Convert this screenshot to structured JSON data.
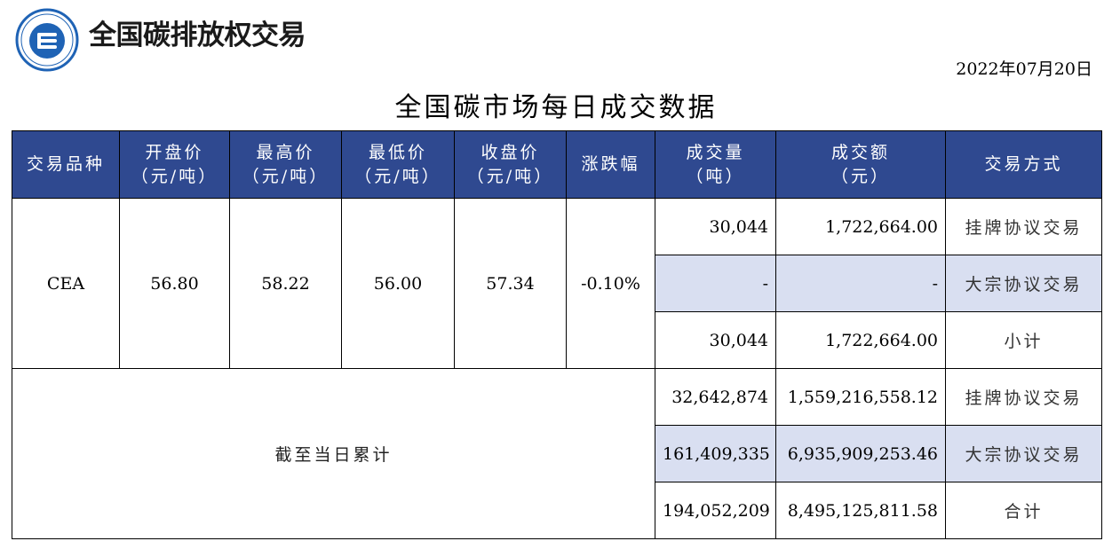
{
  "header": {
    "brand_title": "全国碳排放权交易",
    "date": "2022年07月20日",
    "page_title": "全国碳市场每日成交数据"
  },
  "table": {
    "columns": [
      {
        "l1": "交易品种",
        "l2": ""
      },
      {
        "l1": "开盘价",
        "l2": "（元/吨）"
      },
      {
        "l1": "最高价",
        "l2": "（元/吨）"
      },
      {
        "l1": "最低价",
        "l2": "（元/吨）"
      },
      {
        "l1": "收盘价",
        "l2": "（元/吨）"
      },
      {
        "l1": "涨跌幅",
        "l2": ""
      },
      {
        "l1": "成交量",
        "l2": "（吨）"
      },
      {
        "l1": "成交额",
        "l2": "（元）"
      },
      {
        "l1": "交易方式",
        "l2": ""
      }
    ],
    "daily": {
      "product": "CEA",
      "open": "56.80",
      "high": "58.22",
      "low": "56.00",
      "close": "57.34",
      "change": "-0.10%",
      "rows": [
        {
          "volume": "30,044",
          "amount": "1,722,664.00",
          "method": "挂牌协议交易"
        },
        {
          "volume": "-",
          "amount": "-",
          "method": "大宗协议交易"
        },
        {
          "volume": "30,044",
          "amount": "1,722,664.00",
          "method": "小计"
        }
      ]
    },
    "cumulative": {
      "label": "截至当日累计",
      "rows": [
        {
          "volume": "32,642,874",
          "amount": "1,559,216,558.12",
          "method": "挂牌协议交易"
        },
        {
          "volume": "161,409,335",
          "amount": "6,935,909,253.46",
          "method": "大宗协议交易"
        },
        {
          "volume": "194,052,209",
          "amount": "8,495,125,811.58",
          "method": "合计"
        }
      ]
    }
  },
  "colors": {
    "header_bg": "#2f4990",
    "shade_bg": "#d9dff1",
    "logo_blue": "#1f63b5"
  }
}
